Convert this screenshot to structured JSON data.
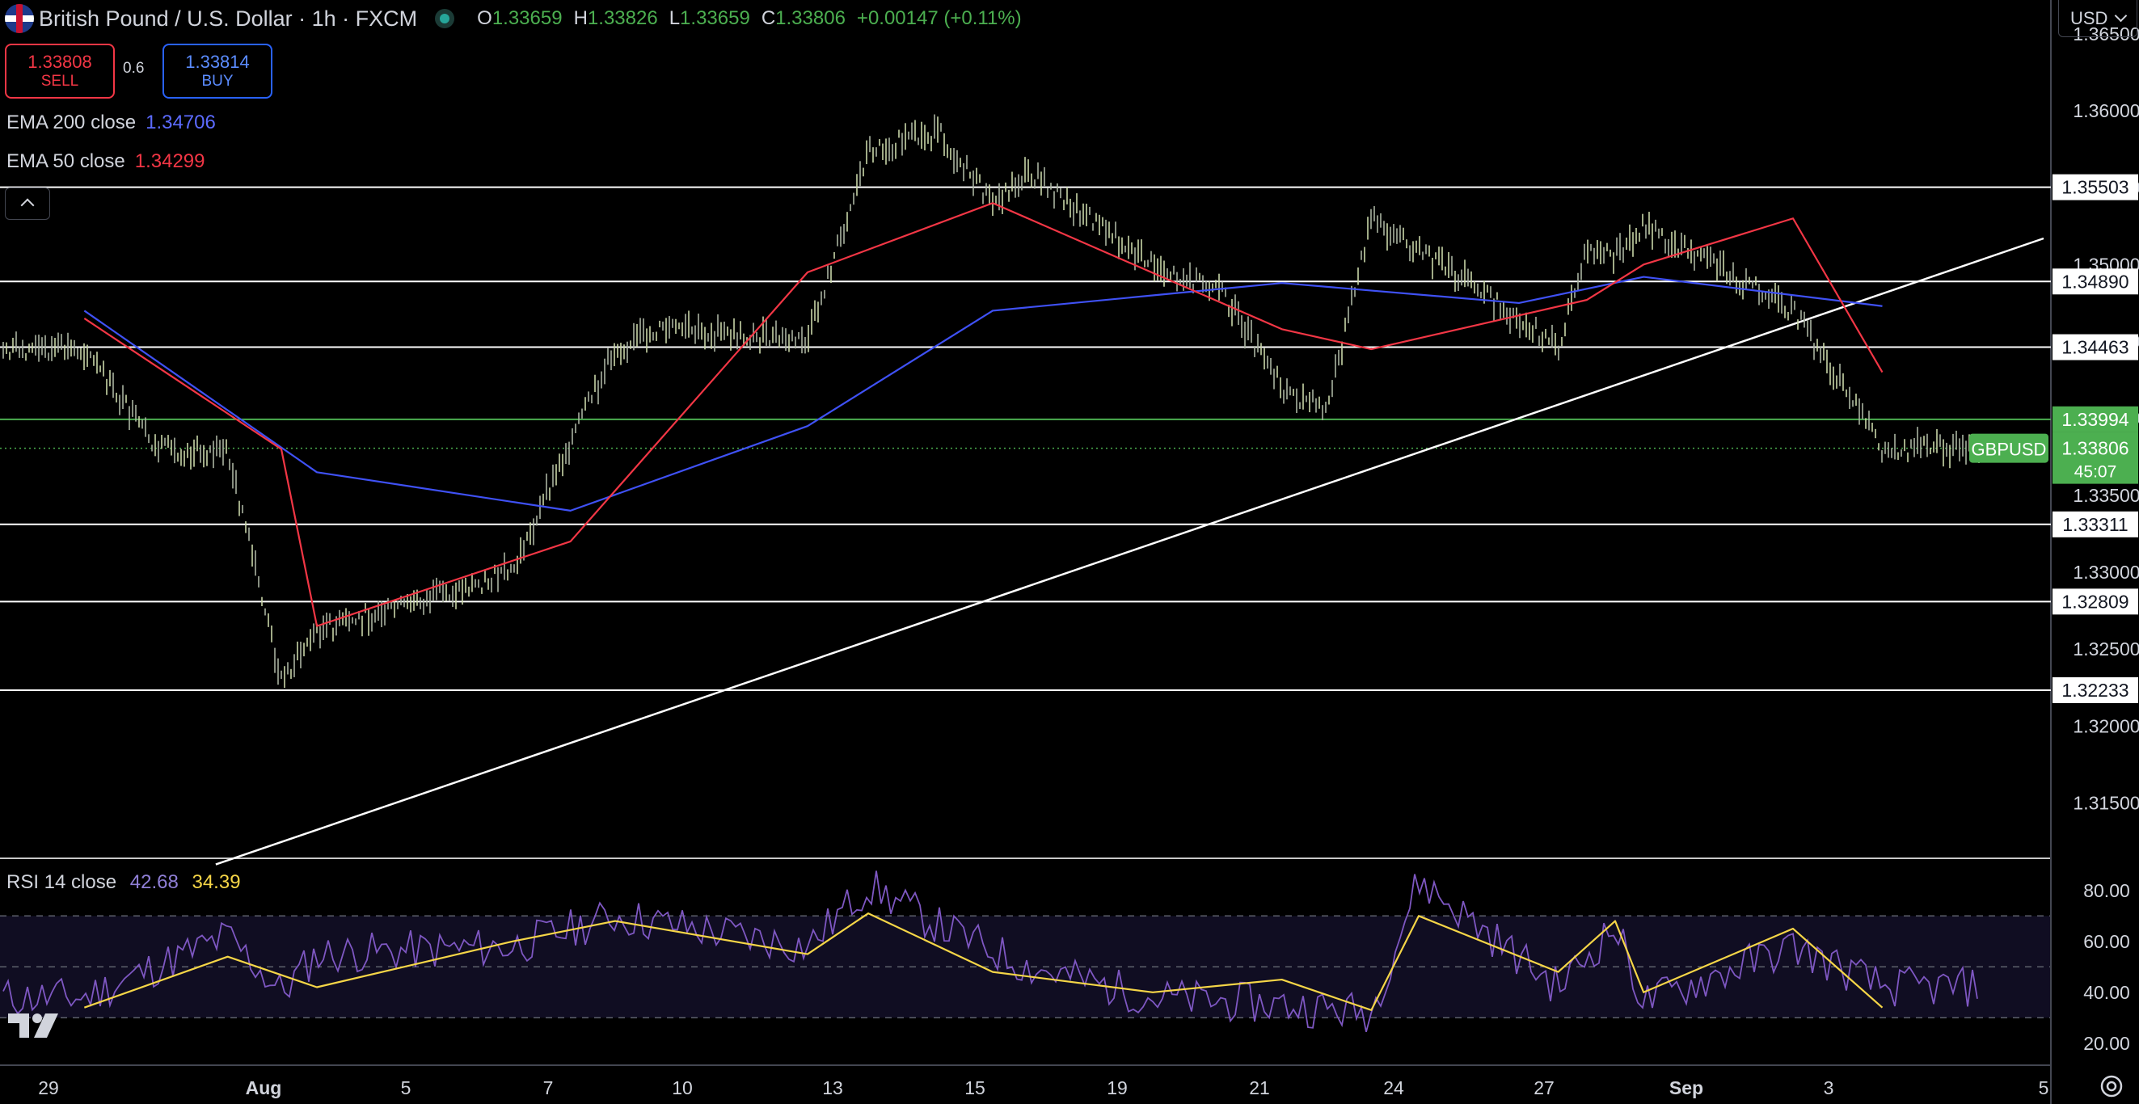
{
  "header": {
    "title": "British Pound / U.S. Dollar · 1h · FXCM",
    "ohlc": [
      {
        "k": "O",
        "v": "1.33659"
      },
      {
        "k": "H",
        "v": "1.33826"
      },
      {
        "k": "L",
        "v": "1.33659"
      },
      {
        "k": "C",
        "v": "1.33806"
      },
      {
        "k": "",
        "v": "+0.00147 (+0.11%)"
      }
    ]
  },
  "trade": {
    "sell_price": "1.33808",
    "sell_label": "SELL",
    "spread": "0.6",
    "buy_price": "1.33814",
    "buy_label": "BUY"
  },
  "indicators": {
    "ema200": {
      "label": "EMA 200 close",
      "value": "1.34706",
      "color": "#3f51f5"
    },
    "ema50": {
      "label": "EMA 50 close",
      "value": "1.34299",
      "color": "#f23645"
    },
    "rsi": {
      "label": "RSI 14 close",
      "value": "42.68",
      "ma_value": "34.39",
      "color": "#7e57c2",
      "ma_color": "#f5d547"
    }
  },
  "currency": "USD",
  "symbol_tag": "GBPUSD",
  "countdown": "45:07",
  "chart_data": {
    "type": "line",
    "price_axis": {
      "ticks": [
        "1.36500",
        "1.36000",
        "1.35500",
        "1.35000",
        "1.34500",
        "1.34000",
        "1.33500",
        "1.33000",
        "1.32500",
        "1.32000",
        "1.31500"
      ],
      "range": [
        1.3114,
        1.3672
      ]
    },
    "horizontal_levels": [
      {
        "label": "1.35503",
        "value": 1.35503
      },
      {
        "label": "1.34890",
        "value": 1.3489
      },
      {
        "label": "1.34463",
        "value": 1.34463
      },
      {
        "label": "1.33311",
        "value": 1.33311
      },
      {
        "label": "1.32809",
        "value": 1.32809
      },
      {
        "label": "1.32233",
        "value": 1.32233
      }
    ],
    "green_level": {
      "label": "1.33994",
      "value": 1.33994
    },
    "last_price": {
      "label": "1.33806",
      "value": 1.33806
    },
    "trendline": [
      {
        "x": "Jul 31 08:00",
        "y": 1.311
      },
      {
        "x": "Sep 5 00:00",
        "y": 1.3517
      }
    ],
    "x_ticks": [
      "29",
      "Aug",
      "5",
      "7",
      "10",
      "13",
      "15",
      "19",
      "21",
      "24",
      "27",
      "Sep",
      "3",
      "5"
    ],
    "price_series": {
      "name": "GBPUSD",
      "x": [
        "Jul 29",
        "Jul 30",
        "Jul 31",
        "Aug 1",
        "Aug 2",
        "Aug 5",
        "Aug 6",
        "Aug 7",
        "Aug 8",
        "Aug 9",
        "Aug 12",
        "Aug 13",
        "Aug 14",
        "Aug 15",
        "Aug 16",
        "Aug 19",
        "Aug 20",
        "Aug 21",
        "Aug 22",
        "Aug 23",
        "Aug 26",
        "Aug 27",
        "Aug 28",
        "Aug 29",
        "Aug 30",
        "Sep 2",
        "Sep 3"
      ],
      "y": [
        1.3445,
        1.338,
        1.3378,
        1.323,
        1.3262,
        1.3285,
        1.33,
        1.3385,
        1.3445,
        1.3458,
        1.345,
        1.3575,
        1.3585,
        1.354,
        1.356,
        1.35,
        1.348,
        1.342,
        1.3405,
        1.353,
        1.3465,
        1.3445,
        1.351,
        1.3505,
        1.3525,
        1.347,
        1.338
      ]
    },
    "ema200_series": {
      "x": [
        "Jul 29",
        "Aug 2",
        "Aug 7",
        "Aug 12",
        "Aug 15",
        "Aug 21",
        "Aug 26",
        "Aug 30",
        "Sep 3"
      ],
      "y": [
        1.347,
        1.3365,
        1.334,
        1.3395,
        1.347,
        1.3488,
        1.3475,
        1.3492,
        1.3473
      ]
    },
    "ema50_series": {
      "x": [
        "Jul 29",
        "Aug 1",
        "Aug 2",
        "Aug 7",
        "Aug 12",
        "Aug 15",
        "Aug 21",
        "Aug 23",
        "Aug 28",
        "Aug 30",
        "Sep 2",
        "Sep 3"
      ],
      "y": [
        1.3465,
        1.338,
        1.3265,
        1.332,
        1.3495,
        1.354,
        1.3458,
        1.3445,
        1.3477,
        1.35,
        1.353,
        1.343
      ]
    },
    "rsi_axis": {
      "ticks": [
        "80.00",
        "60.00",
        "40.00",
        "20.00"
      ],
      "range": [
        12,
        92
      ]
    },
    "rsi_series": {
      "x": [
        "Jul 29",
        "Jul 31",
        "Aug 1",
        "Aug 2",
        "Aug 6",
        "Aug 8",
        "Aug 12",
        "Aug 13",
        "Aug 14",
        "Aug 16",
        "Aug 19",
        "Aug 21",
        "Aug 23",
        "Aug 24",
        "Aug 27",
        "Aug 29",
        "Aug 30",
        "Sep 2",
        "Sep 3"
      ],
      "y": [
        38,
        62,
        40,
        55,
        58,
        70,
        58,
        82,
        66,
        50,
        38,
        35,
        32,
        84,
        42,
        66,
        36,
        58,
        42
      ]
    },
    "rsi_ma_series": {
      "x": [
        "Jul 29",
        "Jul 31",
        "Aug 2",
        "Aug 6",
        "Aug 8",
        "Aug 12",
        "Aug 13",
        "Aug 15",
        "Aug 19",
        "Aug 21",
        "Aug 23",
        "Aug 24",
        "Aug 27",
        "Aug 29",
        "Aug 30",
        "Sep 2",
        "Sep 3"
      ],
      "y": [
        34,
        54,
        42,
        60,
        68,
        55,
        71,
        48,
        40,
        45,
        33,
        70,
        48,
        68,
        40,
        65,
        34
      ]
    }
  }
}
